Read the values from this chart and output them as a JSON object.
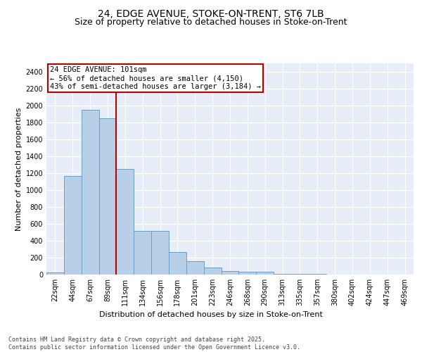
{
  "title_line1": "24, EDGE AVENUE, STOKE-ON-TRENT, ST6 7LB",
  "title_line2": "Size of property relative to detached houses in Stoke-on-Trent",
  "xlabel": "Distribution of detached houses by size in Stoke-on-Trent",
  "ylabel": "Number of detached properties",
  "categories": [
    "22sqm",
    "44sqm",
    "67sqm",
    "89sqm",
    "111sqm",
    "134sqm",
    "156sqm",
    "178sqm",
    "201sqm",
    "223sqm",
    "246sqm",
    "268sqm",
    "290sqm",
    "313sqm",
    "335sqm",
    "357sqm",
    "380sqm",
    "402sqm",
    "424sqm",
    "447sqm",
    "469sqm"
  ],
  "values": [
    25,
    1170,
    1950,
    1850,
    1250,
    515,
    515,
    270,
    160,
    80,
    45,
    30,
    30,
    10,
    5,
    5,
    3,
    2,
    2,
    2,
    2
  ],
  "bar_color": "#b8cfe8",
  "bar_edge_color": "#6a9fc8",
  "vline_x": 3.5,
  "vline_color": "#bb0000",
  "annotation_text": "24 EDGE AVENUE: 101sqm\n← 56% of detached houses are smaller (4,150)\n43% of semi-detached houses are larger (3,184) →",
  "annotation_box_color": "#bb0000",
  "annotation_fill": "white",
  "ylim": [
    0,
    2500
  ],
  "yticks": [
    0,
    200,
    400,
    600,
    800,
    1000,
    1200,
    1400,
    1600,
    1800,
    2000,
    2200,
    2400
  ],
  "bg_color": "#e8eef8",
  "footer_line1": "Contains HM Land Registry data © Crown copyright and database right 2025.",
  "footer_line2": "Contains public sector information licensed under the Open Government Licence v3.0.",
  "title_fontsize": 10,
  "subtitle_fontsize": 9,
  "axis_label_fontsize": 8,
  "tick_fontsize": 7,
  "annotation_fontsize": 7.5,
  "footer_fontsize": 6
}
